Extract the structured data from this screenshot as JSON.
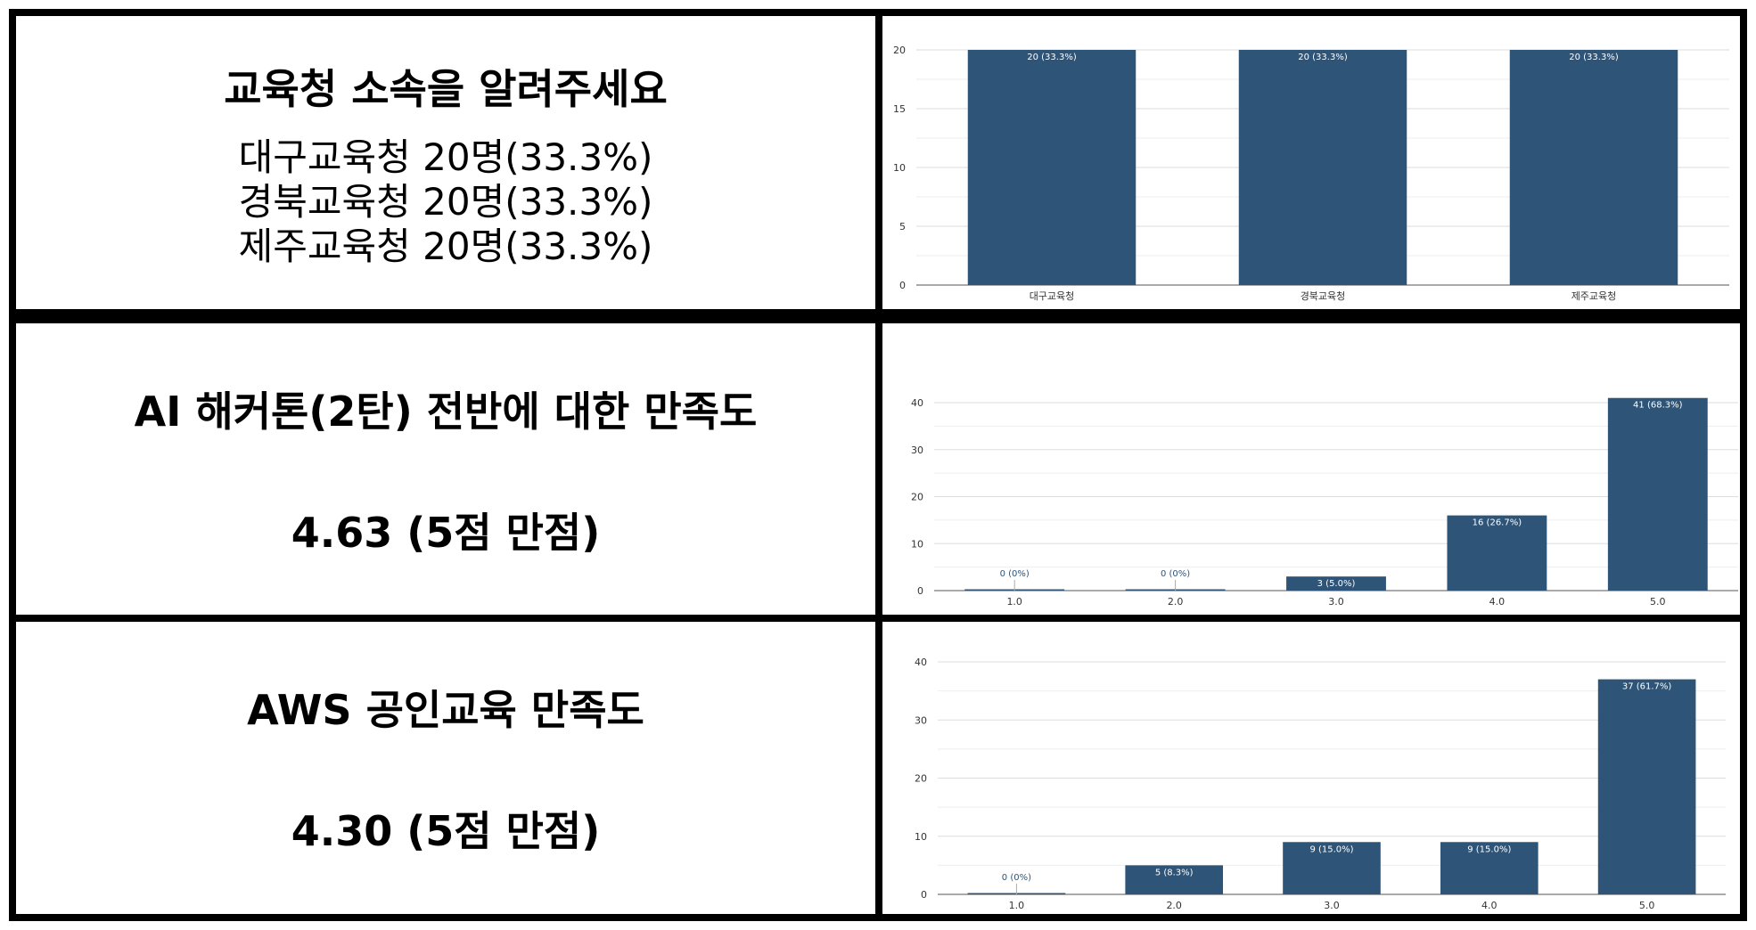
{
  "rows": [
    {
      "title": "교육청 소속을 알려주세요",
      "lines": [
        "대구교육청 20명(33.3%)",
        "경북교육청 20명(33.3%)",
        "제주교육청 20명(33.3%)"
      ]
    },
    {
      "title": "AI 해커톤(2탄) 전반에 대한 만족도",
      "score": "4.63 (5점 만점)"
    },
    {
      "title": "AWS 공인교육 만족도",
      "score": "4.30 (5점 만점)"
    }
  ],
  "colors": {
    "bar": "#2e5478",
    "grid": "#dddddd",
    "axis": "#555555",
    "label_in_bar": "#ffffff",
    "label_zero": "#2e5478"
  },
  "chart_data": [
    {
      "type": "bar",
      "categories": [
        "대구교육청",
        "경북교육청",
        "제주교육청"
      ],
      "values": [
        20,
        20,
        20
      ],
      "data_labels": [
        "20 (33.3%)",
        "20 (33.3%)",
        "20 (33.3%)"
      ],
      "yticks": [
        "0",
        "5",
        "10",
        "15",
        "20"
      ],
      "ylim": [
        0,
        20
      ],
      "grid": true
    },
    {
      "type": "bar",
      "categories": [
        "1.0",
        "2.0",
        "3.0",
        "4.0",
        "5.0"
      ],
      "values": [
        0,
        0,
        3,
        16,
        41
      ],
      "data_labels": [
        "0 (0%)",
        "0 (0%)",
        "3 (5.0%)",
        "16 (26.7%)",
        "41 (68.3%)"
      ],
      "yticks": [
        "0",
        "10",
        "20",
        "30",
        "40"
      ],
      "ylim": [
        0,
        40
      ],
      "grid": true
    },
    {
      "type": "bar",
      "categories": [
        "1.0",
        "2.0",
        "3.0",
        "4.0",
        "5.0"
      ],
      "values": [
        0,
        5,
        9,
        9,
        37
      ],
      "data_labels": [
        "0 (0%)",
        "5 (8.3%)",
        "9 (15.0%)",
        "9 (15.0%)",
        "37 (61.7%)"
      ],
      "yticks": [
        "0",
        "10",
        "20",
        "30",
        "40"
      ],
      "ylim": [
        0,
        40
      ],
      "grid": true
    }
  ]
}
